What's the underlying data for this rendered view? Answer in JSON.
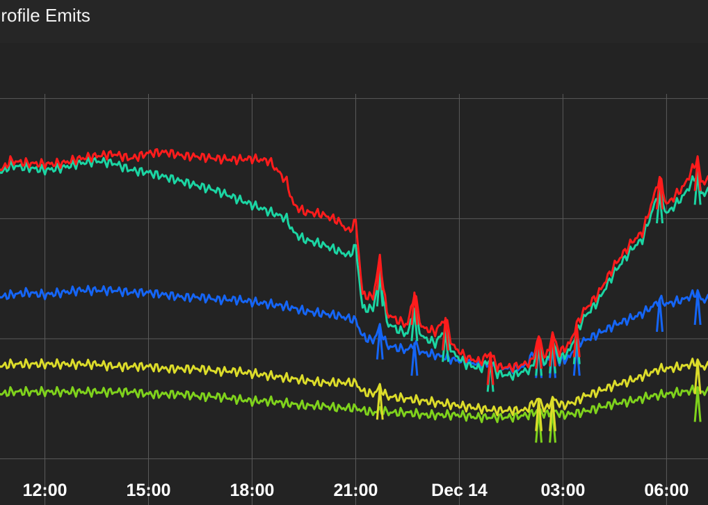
{
  "panel": {
    "title": "Profile Emits"
  },
  "chart_data": {
    "type": "line",
    "grid": true,
    "xlim": [
      10.7,
      31.2
    ],
    "ylim": [
      0,
      100
    ],
    "hgrid_values": [
      10,
      36,
      62,
      88
    ],
    "x_ticks": [
      {
        "label": "12:00",
        "x": 12
      },
      {
        "label": "15:00",
        "x": 15
      },
      {
        "label": "18:00",
        "x": 18
      },
      {
        "label": "21:00",
        "x": 21
      },
      {
        "label": "Dec 14",
        "x": 24
      },
      {
        "label": "03:00",
        "x": 27
      },
      {
        "label": "06:00",
        "x": 30
      }
    ],
    "series": [
      {
        "color": "#ff1c1c",
        "points": [
          [
            10.75,
            72.6
          ],
          [
            11.0,
            74.5
          ],
          [
            11.5,
            74.0
          ],
          [
            12.0,
            73.8
          ],
          [
            12.5,
            74.0
          ],
          [
            13.0,
            75.0
          ],
          [
            13.5,
            75.6
          ],
          [
            14.0,
            76.0
          ],
          [
            14.5,
            75.0
          ],
          [
            15.0,
            76.2
          ],
          [
            15.5,
            76.4
          ],
          [
            16.0,
            75.6
          ],
          [
            16.5,
            75.4
          ],
          [
            17.0,
            75.0
          ],
          [
            17.5,
            74.8
          ],
          [
            18.0,
            75.0
          ],
          [
            18.5,
            74.5
          ],
          [
            19.0,
            70.0
          ],
          [
            19.2,
            65.0
          ],
          [
            19.5,
            63.5
          ],
          [
            20.0,
            63.0
          ],
          [
            20.5,
            61.5
          ],
          [
            20.8,
            59.2
          ],
          [
            21.0,
            61.5
          ],
          [
            21.2,
            45.5
          ],
          [
            21.5,
            45.0
          ],
          [
            21.7,
            53.5
          ],
          [
            21.9,
            41.5
          ],
          [
            22.2,
            40.0
          ],
          [
            22.5,
            39.0
          ],
          [
            22.7,
            46.0
          ],
          [
            22.9,
            38.5
          ],
          [
            23.3,
            37.5
          ],
          [
            23.6,
            40.5
          ],
          [
            23.8,
            34.5
          ],
          [
            24.2,
            32.0
          ],
          [
            24.6,
            31.0
          ],
          [
            24.9,
            33.0
          ],
          [
            25.1,
            30.0
          ],
          [
            25.5,
            29.8
          ],
          [
            25.9,
            30.5
          ],
          [
            26.1,
            31.0
          ],
          [
            26.3,
            36.5
          ],
          [
            26.5,
            31.5
          ],
          [
            26.7,
            37.0
          ],
          [
            26.9,
            33.0
          ],
          [
            27.2,
            35.0
          ],
          [
            27.4,
            39.0
          ],
          [
            27.6,
            42.0
          ],
          [
            28.0,
            45.5
          ],
          [
            28.5,
            52.0
          ],
          [
            29.0,
            57.0
          ],
          [
            29.3,
            59.0
          ],
          [
            29.6,
            66.0
          ],
          [
            29.8,
            71.0
          ],
          [
            30.0,
            65.0
          ],
          [
            30.5,
            69.0
          ],
          [
            30.9,
            75.0
          ],
          [
            31.0,
            70.0
          ],
          [
            31.5,
            70.5
          ],
          [
            32.0,
            68.5
          ]
        ],
        "spikes": [
          [
            21.7,
            53.5
          ],
          [
            22.7,
            46.0
          ],
          [
            23.6,
            40.5
          ],
          [
            24.9,
            33.0
          ],
          [
            26.3,
            36.5
          ],
          [
            26.7,
            37.0
          ],
          [
            27.4,
            39.0
          ],
          [
            29.8,
            71.0
          ],
          [
            30.9,
            75.0
          ]
        ]
      },
      {
        "color": "#1bd5a3",
        "points": [
          [
            10.75,
            72.0
          ],
          [
            11.0,
            73.5
          ],
          [
            11.5,
            73.0
          ],
          [
            12.0,
            72.5
          ],
          [
            12.5,
            73.0
          ],
          [
            13.0,
            74.0
          ],
          [
            13.5,
            74.5
          ],
          [
            14.0,
            74.0
          ],
          [
            14.5,
            72.5
          ],
          [
            15.0,
            72.0
          ],
          [
            15.5,
            71.0
          ],
          [
            16.0,
            70.0
          ],
          [
            16.5,
            69.0
          ],
          [
            17.0,
            68.0
          ],
          [
            17.5,
            66.5
          ],
          [
            18.0,
            65.0
          ],
          [
            18.5,
            63.5
          ],
          [
            19.0,
            62.0
          ],
          [
            19.2,
            59.0
          ],
          [
            19.5,
            57.5
          ],
          [
            20.0,
            56.5
          ],
          [
            20.5,
            55.0
          ],
          [
            20.8,
            54.0
          ],
          [
            21.0,
            56.0
          ],
          [
            21.2,
            42.5
          ],
          [
            21.5,
            42.5
          ],
          [
            21.7,
            50.0
          ],
          [
            21.9,
            39.5
          ],
          [
            22.2,
            38.0
          ],
          [
            22.5,
            37.0
          ],
          [
            22.7,
            42.5
          ],
          [
            22.9,
            36.5
          ],
          [
            23.3,
            35.0
          ],
          [
            23.6,
            38.0
          ],
          [
            23.8,
            33.0
          ],
          [
            24.2,
            30.5
          ],
          [
            24.6,
            29.5
          ],
          [
            24.9,
            31.5
          ],
          [
            25.1,
            28.5
          ],
          [
            25.5,
            28.0
          ],
          [
            25.9,
            29.0
          ],
          [
            26.1,
            29.5
          ],
          [
            26.3,
            35.0
          ],
          [
            26.5,
            30.0
          ],
          [
            26.7,
            35.5
          ],
          [
            26.9,
            31.5
          ],
          [
            27.2,
            33.5
          ],
          [
            27.4,
            37.5
          ],
          [
            27.6,
            40.5
          ],
          [
            28.0,
            44.0
          ],
          [
            28.5,
            50.5
          ],
          [
            29.0,
            55.5
          ],
          [
            29.3,
            57.5
          ],
          [
            29.6,
            64.0
          ],
          [
            29.8,
            68.0
          ],
          [
            30.0,
            63.0
          ],
          [
            30.5,
            67.0
          ],
          [
            30.9,
            72.0
          ],
          [
            31.0,
            67.5
          ],
          [
            31.5,
            68.0
          ],
          [
            32.0,
            66.0
          ]
        ],
        "spikes": [
          [
            21.7,
            50.0
          ],
          [
            22.7,
            42.5
          ],
          [
            23.6,
            38.0
          ],
          [
            24.9,
            31.5
          ],
          [
            26.3,
            35.0
          ],
          [
            26.7,
            35.5
          ],
          [
            27.4,
            37.5
          ],
          [
            29.8,
            68.0
          ],
          [
            30.9,
            72.0
          ]
        ]
      },
      {
        "color": "#1565f5",
        "points": [
          [
            10.75,
            45.0
          ],
          [
            11.0,
            45.5
          ],
          [
            11.5,
            46.0
          ],
          [
            12.0,
            45.5
          ],
          [
            12.5,
            46.0
          ],
          [
            13.0,
            46.5
          ],
          [
            13.5,
            46.5
          ],
          [
            14.0,
            46.5
          ],
          [
            14.5,
            46.0
          ],
          [
            15.0,
            46.0
          ],
          [
            15.5,
            45.5
          ],
          [
            16.0,
            45.0
          ],
          [
            16.5,
            45.0
          ],
          [
            17.0,
            44.5
          ],
          [
            17.5,
            44.5
          ],
          [
            18.0,
            44.0
          ],
          [
            18.5,
            43.5
          ],
          [
            19.0,
            43.0
          ],
          [
            19.5,
            42.0
          ],
          [
            20.0,
            41.5
          ],
          [
            20.5,
            41.0
          ],
          [
            21.0,
            40.0
          ],
          [
            21.2,
            36.5
          ],
          [
            21.5,
            35.5
          ],
          [
            21.7,
            38.5
          ],
          [
            21.9,
            34.5
          ],
          [
            22.2,
            34.0
          ],
          [
            22.5,
            33.5
          ],
          [
            22.7,
            35.0
          ],
          [
            22.9,
            33.0
          ],
          [
            23.3,
            32.5
          ],
          [
            23.8,
            31.5
          ],
          [
            24.2,
            31.0
          ],
          [
            24.6,
            30.5
          ],
          [
            25.1,
            30.0
          ],
          [
            25.5,
            29.5
          ],
          [
            25.9,
            30.0
          ],
          [
            26.3,
            34.5
          ],
          [
            26.5,
            30.0
          ],
          [
            26.7,
            34.5
          ],
          [
            26.9,
            31.0
          ],
          [
            27.2,
            32.0
          ],
          [
            27.4,
            35.0
          ],
          [
            27.6,
            35.5
          ],
          [
            28.0,
            37.0
          ],
          [
            28.5,
            39.0
          ],
          [
            29.0,
            40.5
          ],
          [
            29.3,
            41.5
          ],
          [
            29.6,
            43.0
          ],
          [
            29.8,
            44.5
          ],
          [
            30.0,
            43.5
          ],
          [
            30.5,
            44.5
          ],
          [
            30.9,
            46.0
          ],
          [
            31.0,
            44.5
          ],
          [
            31.5,
            44.5
          ],
          [
            32.0,
            43.5
          ]
        ],
        "spikes": [
          [
            21.7,
            38.5
          ],
          [
            22.7,
            35.0
          ],
          [
            26.3,
            34.5
          ],
          [
            26.7,
            34.5
          ],
          [
            27.4,
            35.0
          ],
          [
            29.8,
            44.5
          ],
          [
            30.9,
            46.0
          ]
        ]
      },
      {
        "color": "#dcdc2a",
        "points": [
          [
            10.75,
            30.0
          ],
          [
            11.0,
            30.5
          ],
          [
            11.5,
            30.5
          ],
          [
            12.0,
            30.5
          ],
          [
            12.5,
            30.5
          ],
          [
            13.0,
            30.5
          ],
          [
            13.5,
            30.5
          ],
          [
            14.0,
            30.0
          ],
          [
            14.5,
            30.0
          ],
          [
            15.0,
            30.0
          ],
          [
            15.5,
            29.5
          ],
          [
            16.0,
            29.5
          ],
          [
            16.5,
            29.5
          ],
          [
            17.0,
            29.0
          ],
          [
            17.5,
            29.0
          ],
          [
            18.0,
            28.5
          ],
          [
            18.5,
            28.0
          ],
          [
            19.0,
            27.5
          ],
          [
            19.5,
            27.0
          ],
          [
            20.0,
            26.5
          ],
          [
            20.5,
            26.5
          ],
          [
            21.0,
            26.5
          ],
          [
            21.2,
            24.5
          ],
          [
            21.5,
            24.0
          ],
          [
            21.7,
            25.5
          ],
          [
            21.9,
            23.5
          ],
          [
            22.5,
            23.0
          ],
          [
            23.0,
            22.5
          ],
          [
            23.5,
            22.0
          ],
          [
            24.0,
            21.5
          ],
          [
            24.5,
            21.0
          ],
          [
            25.0,
            20.5
          ],
          [
            25.5,
            20.5
          ],
          [
            25.9,
            20.5
          ],
          [
            26.3,
            23.0
          ],
          [
            26.5,
            20.5
          ],
          [
            26.7,
            23.0
          ],
          [
            27.0,
            21.5
          ],
          [
            27.4,
            22.5
          ],
          [
            27.6,
            23.5
          ],
          [
            28.0,
            24.5
          ],
          [
            28.5,
            26.0
          ],
          [
            29.0,
            27.0
          ],
          [
            29.5,
            28.5
          ],
          [
            29.8,
            29.5
          ],
          [
            30.0,
            29.5
          ],
          [
            30.5,
            30.0
          ],
          [
            30.9,
            31.0
          ],
          [
            31.0,
            30.0
          ],
          [
            31.5,
            30.0
          ],
          [
            32.0,
            29.5
          ]
        ],
        "spikes": [
          [
            21.7,
            25.5
          ],
          [
            26.3,
            23.0
          ],
          [
            26.7,
            23.0
          ],
          [
            30.9,
            31.0
          ]
        ]
      },
      {
        "color": "#7fd21c",
        "points": [
          [
            10.75,
            24.0
          ],
          [
            11.0,
            24.5
          ],
          [
            11.5,
            24.5
          ],
          [
            12.0,
            24.5
          ],
          [
            12.5,
            24.5
          ],
          [
            13.0,
            24.5
          ],
          [
            13.5,
            24.5
          ],
          [
            14.0,
            24.5
          ],
          [
            14.5,
            24.5
          ],
          [
            15.0,
            24.0
          ],
          [
            15.5,
            24.0
          ],
          [
            16.0,
            24.0
          ],
          [
            16.5,
            23.5
          ],
          [
            17.0,
            23.5
          ],
          [
            17.5,
            23.0
          ],
          [
            18.0,
            22.5
          ],
          [
            18.5,
            22.5
          ],
          [
            19.0,
            22.0
          ],
          [
            19.5,
            21.5
          ],
          [
            20.0,
            21.5
          ],
          [
            20.5,
            21.0
          ],
          [
            21.0,
            21.0
          ],
          [
            21.2,
            20.5
          ],
          [
            21.5,
            20.0
          ],
          [
            21.7,
            20.5
          ],
          [
            22.0,
            20.0
          ],
          [
            22.5,
            20.0
          ],
          [
            23.0,
            19.5
          ],
          [
            23.5,
            19.5
          ],
          [
            24.0,
            19.5
          ],
          [
            24.5,
            19.0
          ],
          [
            25.0,
            19.0
          ],
          [
            25.5,
            19.0
          ],
          [
            26.0,
            19.5
          ],
          [
            26.3,
            20.5
          ],
          [
            26.5,
            19.5
          ],
          [
            26.7,
            20.5
          ],
          [
            27.0,
            19.5
          ],
          [
            27.5,
            20.0
          ],
          [
            28.0,
            21.0
          ],
          [
            28.5,
            22.0
          ],
          [
            29.0,
            22.5
          ],
          [
            29.5,
            23.5
          ],
          [
            30.0,
            24.0
          ],
          [
            30.5,
            24.5
          ],
          [
            30.9,
            25.0
          ],
          [
            31.0,
            24.5
          ],
          [
            31.5,
            24.5
          ],
          [
            32.0,
            24.0
          ]
        ],
        "spikes": [
          [
            26.3,
            20.5
          ],
          [
            26.7,
            20.5
          ],
          [
            30.9,
            25.0
          ]
        ]
      }
    ]
  }
}
